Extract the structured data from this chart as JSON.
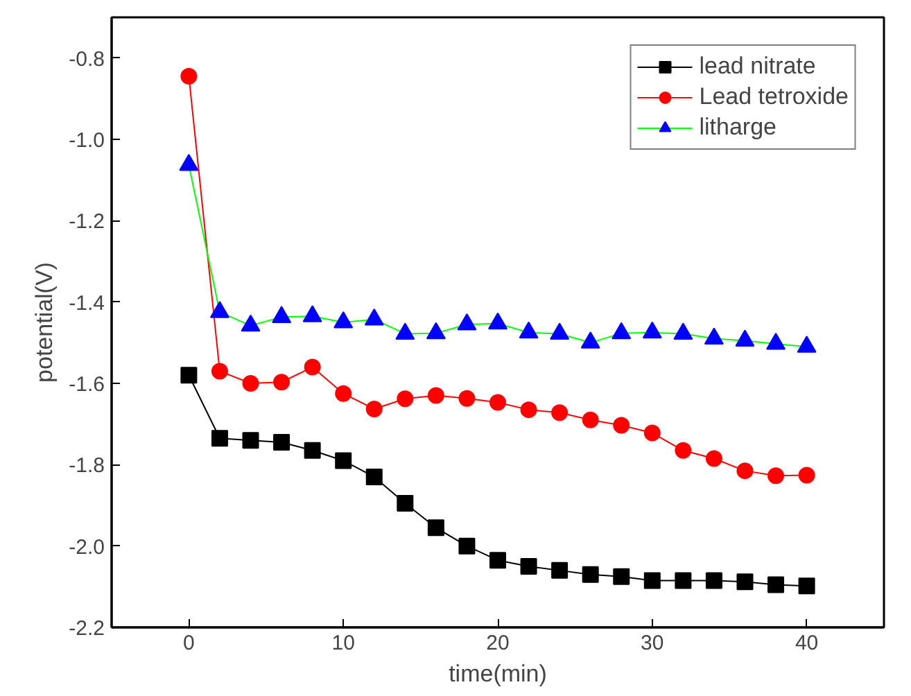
{
  "chart_data": {
    "type": "line",
    "xlabel": "time(min)",
    "ylabel": "potential(V)",
    "x": [
      0,
      2,
      4,
      6,
      8,
      10,
      12,
      14,
      16,
      18,
      20,
      22,
      24,
      26,
      28,
      30,
      32,
      34,
      36,
      38,
      40
    ],
    "series": [
      {
        "name": "lead nitrate",
        "color": "#000000",
        "marker": "square",
        "values": [
          -1.58,
          -1.735,
          -1.74,
          -1.745,
          -1.765,
          -1.79,
          -1.83,
          -1.895,
          -1.955,
          -2.0,
          -2.035,
          -2.05,
          -2.06,
          -2.07,
          -2.075,
          -2.085,
          -2.085,
          -2.085,
          -2.088,
          -2.095,
          -2.098
        ]
      },
      {
        "name": "Lead tetroxide",
        "color": "#ff0000",
        "marker": "circle",
        "values": [
          -0.845,
          -1.57,
          -1.6,
          -1.597,
          -1.56,
          -1.625,
          -1.663,
          -1.638,
          -1.63,
          -1.637,
          -1.647,
          -1.665,
          -1.672,
          -1.69,
          -1.703,
          -1.722,
          -1.765,
          -1.785,
          -1.815,
          -1.827,
          -1.826
        ]
      },
      {
        "name": "litharge",
        "color": "#00ff00",
        "marker": "triangle",
        "values": [
          -1.063,
          -1.425,
          -1.458,
          -1.437,
          -1.435,
          -1.45,
          -1.443,
          -1.478,
          -1.477,
          -1.455,
          -1.453,
          -1.475,
          -1.478,
          -1.5,
          -1.477,
          -1.475,
          -1.478,
          -1.49,
          -1.495,
          -1.503,
          -1.51
        ]
      }
    ],
    "xlim": [
      -5,
      45
    ],
    "ylim": [
      -2.2,
      -0.7
    ],
    "xticks": [
      0,
      10,
      20,
      30,
      40
    ],
    "yticks": [
      {
        "value": -2.2,
        "label": "-2.2"
      },
      {
        "value": -2.0,
        "label": "-2.0"
      },
      {
        "value": -1.8,
        "label": "-1.8"
      },
      {
        "value": -1.6,
        "label": "-1.6"
      },
      {
        "value": -1.4,
        "label": "-1.4"
      },
      {
        "value": -1.2,
        "label": "-1.2"
      },
      {
        "value": -1.0,
        "label": "-1.0"
      },
      {
        "value": -0.8,
        "label": "-0.8"
      }
    ],
    "grid": false,
    "legend": "top right"
  }
}
